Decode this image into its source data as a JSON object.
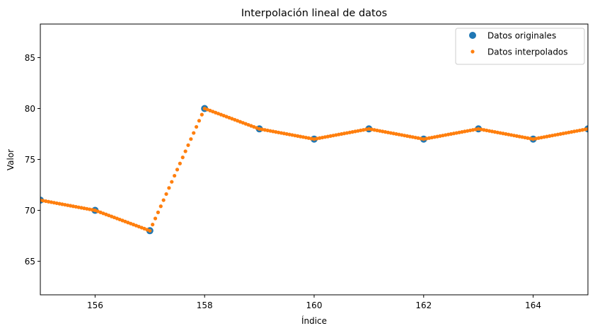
{
  "chart_data": {
    "type": "scatter",
    "title": "Interpolación lineal de datos",
    "xlabel": "Índice",
    "ylabel": "Valor",
    "xlim": [
      155,
      165
    ],
    "ylim": [
      61.7,
      88.3
    ],
    "x_ticks": [
      156,
      158,
      160,
      162,
      164
    ],
    "y_ticks": [
      65,
      70,
      75,
      80,
      85
    ],
    "grid": false,
    "legend_position": "top-right",
    "series": [
      {
        "name": "Datos originales",
        "color": "#1f77b4",
        "marker": "circle-large",
        "x": [
          155,
          156,
          157,
          158,
          159,
          160,
          161,
          162,
          163,
          164,
          165
        ],
        "y": [
          71,
          70,
          68,
          80,
          78,
          77,
          78,
          77,
          78,
          77,
          78
        ]
      },
      {
        "name": "Datos interpolados",
        "color": "#ff7f0e",
        "marker": "circle-small",
        "points_per_unit": 20,
        "x_range": [
          155,
          165
        ],
        "interpolated_from": "Datos originales"
      }
    ]
  }
}
